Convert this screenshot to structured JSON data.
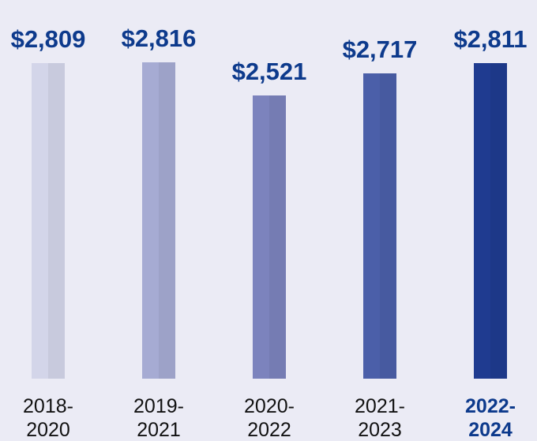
{
  "chart_data": {
    "type": "bar",
    "categories": [
      "2018-2020",
      "2019-2021",
      "2020-2022",
      "2021-2023",
      "2022-2024"
    ],
    "values": [
      2809,
      2816,
      2521,
      2717,
      2811
    ],
    "value_labels": [
      "$2,809",
      "$2,816",
      "$2,521",
      "$2,717",
      "$2,811"
    ],
    "colors": [
      "#d3d5e9",
      "#a6abd3",
      "#7c83bd",
      "#4b5fa9",
      "#1f3b90"
    ],
    "label_color": "#0d3a8c",
    "highlight": 4,
    "ylim": [
      0,
      2900
    ]
  }
}
